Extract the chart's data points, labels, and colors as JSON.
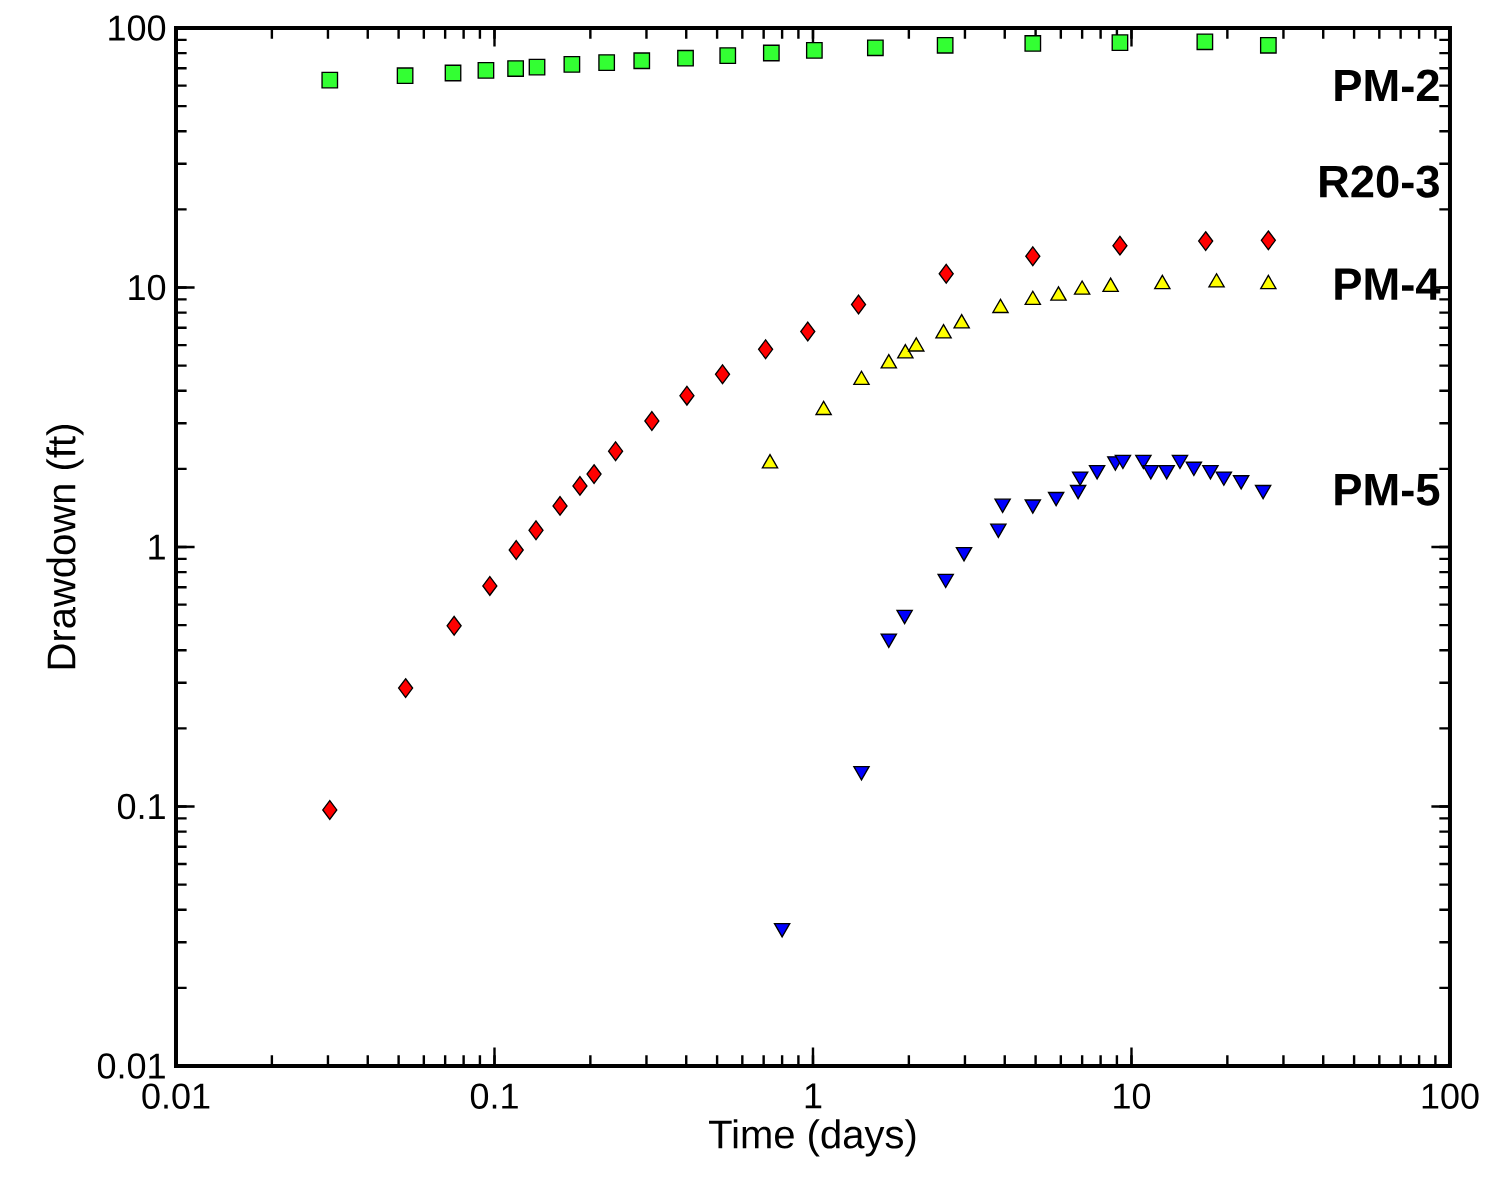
{
  "chart_data": {
    "type": "scatter",
    "legend": "right",
    "xlabel": "Time (days)",
    "ylabel": "Drawdown (ft)",
    "log": "xy",
    "xlim": [
      0.01,
      100
    ],
    "ylim": [
      0.01,
      100
    ],
    "xticks": [
      0.01,
      0.1,
      1,
      10,
      100
    ],
    "yticks": [
      0.01,
      0.1,
      1,
      10,
      100
    ],
    "series": [
      {
        "name": "PM-2",
        "color": "#33ff33",
        "marker": "square",
        "x": [
          0.0304,
          0.0524,
          0.0741,
          0.094,
          0.1165,
          0.136,
          0.175,
          0.225,
          0.29,
          0.398,
          0.54,
          0.74,
          1.01,
          1.57,
          2.6,
          4.9,
          9.2,
          17,
          26.9
        ],
        "values": [
          63,
          65.5,
          67.1,
          68.7,
          69.8,
          70.7,
          72.4,
          73.6,
          74.8,
          76.5,
          78.3,
          80.1,
          82,
          83.9,
          85.8,
          87.2,
          87.8,
          88.5,
          85.8
        ]
      },
      {
        "name": "R20-3",
        "color": "#ff0000",
        "marker": "diamond",
        "x": [
          0.0304,
          0.0526,
          0.0747,
          0.0967,
          0.117,
          0.135,
          0.1606,
          0.1855,
          0.2054,
          0.24,
          0.312,
          0.402,
          0.52,
          0.71,
          0.963,
          1.39,
          2.62,
          4.9,
          9.2,
          17.1,
          26.9
        ],
        "values": [
          0.097,
          0.286,
          0.497,
          0.708,
          0.974,
          1.16,
          1.44,
          1.72,
          1.91,
          2.34,
          3.06,
          3.83,
          4.63,
          5.78,
          6.77,
          8.6,
          11.3,
          13.2,
          14.5,
          15.1,
          15.2
        ]
      },
      {
        "name": "PM-4",
        "color": "#ffff00",
        "marker": "triangle",
        "x": [
          0.733,
          1.08,
          1.42,
          1.73,
          1.95,
          2.11,
          2.57,
          2.93,
          3.88,
          4.9,
          5.9,
          7.0,
          8.6,
          12.5,
          18.5,
          26.9
        ],
        "values": [
          2.1,
          3.37,
          4.4,
          5.1,
          5.57,
          5.92,
          6.65,
          7.27,
          8.33,
          8.95,
          9.3,
          9.8,
          10.05,
          10.3,
          10.45,
          10.3
        ]
      },
      {
        "name": "PM-5",
        "color": "#0000ff",
        "marker": "triangle down",
        "x": [
          0.8,
          1.42,
          1.73,
          1.94,
          2.61,
          2.98,
          3.82,
          3.94,
          4.9,
          5.8,
          6.8,
          6.9,
          7.8,
          8.9,
          9.4,
          10.9,
          11.5,
          12.9,
          14.2,
          15.7,
          17.7,
          19.5,
          22.1,
          25.9
        ],
        "values": [
          0.034,
          0.137,
          0.444,
          0.548,
          0.755,
          0.956,
          1.178,
          1.47,
          1.46,
          1.56,
          1.66,
          1.87,
          1.98,
          2.14,
          2.17,
          2.17,
          1.98,
          1.98,
          2.17,
          2.04,
          1.98,
          1.87,
          1.81,
          1.66
        ]
      }
    ]
  }
}
